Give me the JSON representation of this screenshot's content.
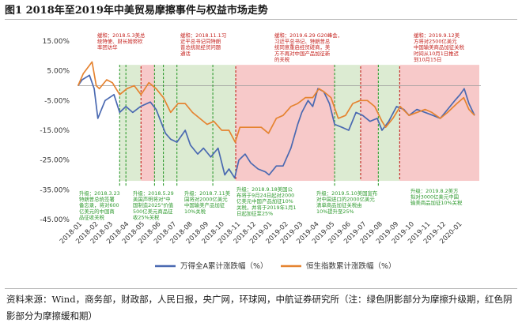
{
  "figure": {
    "title": "图1  2018年至2019年中美贸易摩擦事件与权益市场走势",
    "source": "资料来源：Wind，商务部，财政部，人民日报，央广网，环球网，中航证券研究所（注：绿色阴影部分为摩擦升级期，红色阴影部分为摩擦缓和期）"
  },
  "colors": {
    "wind_line": "#4a69b1",
    "hsi_line": "#e58330",
    "escalation_shade": "#dcebd2",
    "easing_shade": "#f7c9c9",
    "escalation_text": "#2e9a2e",
    "easing_text": "#c4201c"
  },
  "chart_data": {
    "type": "line",
    "ylim": [
      -45,
      15
    ],
    "yticks": [
      15,
      5,
      -5,
      -15,
      -25,
      -35,
      -45
    ],
    "ytick_labels": [
      "15.00%",
      "5.00%",
      "-5.00%",
      "-15.00%",
      "-25.00%",
      "-35.00%",
      "-45.00%"
    ],
    "x_range": [
      "2018-01-01",
      "2020-02-15"
    ],
    "xtick_labels": [
      "2018-01",
      "2018-02",
      "2018-03",
      "2018-04",
      "2018-05",
      "2018-06",
      "2018-07",
      "2018-08",
      "2018-09",
      "2018-10",
      "2018-11",
      "2018-12",
      "2019-01",
      "2019-02",
      "2019-03",
      "2019-04",
      "2019-05",
      "2019-06",
      "2019-07",
      "2019-08",
      "2019-09",
      "2019-10",
      "2019-11",
      "2019-12",
      "2020-01"
    ],
    "series": [
      {
        "name": "万得全A累计涨跌幅（%）",
        "color": "#4a69b1",
        "points": [
          [
            "2018-01-02",
            0
          ],
          [
            "2018-01-10",
            2
          ],
          [
            "2018-01-24",
            3.5
          ],
          [
            "2018-02-02",
            -1
          ],
          [
            "2018-02-09",
            -11
          ],
          [
            "2018-02-23",
            -5
          ],
          [
            "2018-03-12",
            -3
          ],
          [
            "2018-03-23",
            -9
          ],
          [
            "2018-04-04",
            -7
          ],
          [
            "2018-04-17",
            -9
          ],
          [
            "2018-05-02",
            -7
          ],
          [
            "2018-05-21",
            -5.5
          ],
          [
            "2018-06-01",
            -8
          ],
          [
            "2018-06-19",
            -16
          ],
          [
            "2018-06-29",
            -18
          ],
          [
            "2018-07-11",
            -19
          ],
          [
            "2018-07-27",
            -15
          ],
          [
            "2018-08-06",
            -20
          ],
          [
            "2018-08-20",
            -23
          ],
          [
            "2018-08-31",
            -21
          ],
          [
            "2018-09-14",
            -24
          ],
          [
            "2018-09-28",
            -21
          ],
          [
            "2018-10-11",
            -30
          ],
          [
            "2018-10-19",
            -28
          ],
          [
            "2018-10-30",
            -31
          ],
          [
            "2018-11-07",
            -25
          ],
          [
            "2018-11-19",
            -23
          ],
          [
            "2018-11-30",
            -26
          ],
          [
            "2018-12-14",
            -28
          ],
          [
            "2018-12-28",
            -29
          ],
          [
            "2019-01-04",
            -30
          ],
          [
            "2019-01-18",
            -27
          ],
          [
            "2019-01-31",
            -27
          ],
          [
            "2019-02-15",
            -21
          ],
          [
            "2019-02-28",
            -13
          ],
          [
            "2019-03-08",
            -9
          ],
          [
            "2019-03-20",
            -5
          ],
          [
            "2019-03-29",
            -7
          ],
          [
            "2019-04-08",
            -1
          ],
          [
            "2019-04-19",
            -2
          ],
          [
            "2019-04-30",
            -6
          ],
          [
            "2019-05-10",
            -13
          ],
          [
            "2019-05-24",
            -14
          ],
          [
            "2019-06-06",
            -15
          ],
          [
            "2019-06-20",
            -9
          ],
          [
            "2019-07-03",
            -10
          ],
          [
            "2019-07-17",
            -12
          ],
          [
            "2019-07-31",
            -11
          ],
          [
            "2019-08-09",
            -15
          ],
          [
            "2019-08-22",
            -12
          ],
          [
            "2019-09-06",
            -7
          ],
          [
            "2019-09-20",
            -8
          ],
          [
            "2019-09-30",
            -10
          ],
          [
            "2019-10-15",
            -8
          ],
          [
            "2019-10-31",
            -9
          ],
          [
            "2019-11-15",
            -10
          ],
          [
            "2019-11-29",
            -11
          ],
          [
            "2019-12-13",
            -8
          ],
          [
            "2019-12-27",
            -5
          ],
          [
            "2020-01-06",
            -3
          ],
          [
            "2020-01-14",
            -1
          ],
          [
            "2020-01-23",
            -6
          ],
          [
            "2020-02-03",
            -10
          ]
        ]
      },
      {
        "name": "恒生指数累计涨跌幅（%）",
        "color": "#e58330",
        "points": [
          [
            "2018-01-02",
            0
          ],
          [
            "2018-01-12",
            4
          ],
          [
            "2018-01-29",
            8
          ],
          [
            "2018-02-06",
            0
          ],
          [
            "2018-02-12",
            -1
          ],
          [
            "2018-02-26",
            2
          ],
          [
            "2018-03-09",
            1
          ],
          [
            "2018-03-23",
            -3
          ],
          [
            "2018-04-06",
            -1
          ],
          [
            "2018-04-20",
            0
          ],
          [
            "2018-05-03",
            -3
          ],
          [
            "2018-05-18",
            1
          ],
          [
            "2018-06-01",
            -1
          ],
          [
            "2018-06-15",
            -4
          ],
          [
            "2018-06-29",
            -9
          ],
          [
            "2018-07-13",
            -6
          ],
          [
            "2018-07-27",
            -6
          ],
          [
            "2018-08-10",
            -9
          ],
          [
            "2018-08-24",
            -11
          ],
          [
            "2018-09-07",
            -13
          ],
          [
            "2018-09-20",
            -12
          ],
          [
            "2018-10-05",
            -15
          ],
          [
            "2018-10-19",
            -15
          ],
          [
            "2018-10-31",
            -19
          ],
          [
            "2018-11-09",
            -14
          ],
          [
            "2018-11-23",
            -14
          ],
          [
            "2018-12-07",
            -14
          ],
          [
            "2018-12-20",
            -14
          ],
          [
            "2019-01-03",
            -16
          ],
          [
            "2019-01-18",
            -11
          ],
          [
            "2019-01-31",
            -10
          ],
          [
            "2019-02-15",
            -7
          ],
          [
            "2019-02-28",
            -6
          ],
          [
            "2019-03-15",
            -4
          ],
          [
            "2019-03-29",
            -4
          ],
          [
            "2019-04-10",
            -1
          ],
          [
            "2019-04-19",
            -2
          ],
          [
            "2019-05-03",
            -4
          ],
          [
            "2019-05-17",
            -11
          ],
          [
            "2019-05-31",
            -10
          ],
          [
            "2019-06-14",
            -6
          ],
          [
            "2019-06-28",
            -5
          ],
          [
            "2019-07-12",
            -5
          ],
          [
            "2019-07-26",
            -7
          ],
          [
            "2019-08-09",
            -12
          ],
          [
            "2019-08-16",
            -14
          ],
          [
            "2019-08-30",
            -11
          ],
          [
            "2019-09-13",
            -7
          ],
          [
            "2019-09-30",
            -10
          ],
          [
            "2019-10-15",
            -9
          ],
          [
            "2019-10-31",
            -8
          ],
          [
            "2019-11-13",
            -9
          ],
          [
            "2019-11-29",
            -11
          ],
          [
            "2019-12-13",
            -9
          ],
          [
            "2019-12-31",
            -6
          ],
          [
            "2020-01-13",
            -4
          ],
          [
            "2020-01-23",
            -8
          ],
          [
            "2020-02-03",
            -10
          ]
        ]
      }
    ],
    "shaded_periods": [
      {
        "type": "escalation",
        "start": "2018-03-23",
        "end": "2018-05-03"
      },
      {
        "type": "easing",
        "start": "2018-05-03",
        "end": "2018-05-29"
      },
      {
        "type": "escalation",
        "start": "2018-05-29",
        "end": "2018-11-01"
      },
      {
        "type": "easing",
        "start": "2018-11-01",
        "end": "2019-05-10"
      },
      {
        "type": "escalation",
        "start": "2019-05-10",
        "end": "2019-06-29"
      },
      {
        "type": "easing",
        "start": "2019-06-29",
        "end": "2019-08-02"
      },
      {
        "type": "escalation",
        "start": "2019-08-02",
        "end": "2019-09-12"
      },
      {
        "type": "easing",
        "start": "2019-09-12",
        "end": "2020-02-15"
      }
    ],
    "event_lines": [
      {
        "date": "2018-03-23",
        "type": "escalation"
      },
      {
        "date": "2018-04-04",
        "type": "escalation"
      },
      {
        "date": "2018-05-03",
        "type": "easing"
      },
      {
        "date": "2018-05-29",
        "type": "escalation"
      },
      {
        "date": "2018-06-15",
        "type": "escalation"
      },
      {
        "date": "2018-07-11",
        "type": "escalation"
      },
      {
        "date": "2018-09-18",
        "type": "escalation"
      },
      {
        "date": "2018-11-01",
        "type": "easing"
      },
      {
        "date": "2019-05-10",
        "type": "escalation"
      },
      {
        "date": "2019-06-29",
        "type": "easing"
      },
      {
        "date": "2019-08-02",
        "type": "escalation"
      },
      {
        "date": "2019-09-12",
        "type": "easing"
      }
    ],
    "annotations_top": [
      {
        "type": "easing",
        "lines": [
          "缓和：2018.5.3美总",
          "统特使、财长姆努钦",
          "率团访华"
        ]
      },
      {
        "type": "easing",
        "lines": [
          "缓和：2018.11.1习",
          "近平总书记同特朗",
          "普总统就经贸问题",
          "通话"
        ]
      },
      {
        "type": "easing",
        "lines": [
          "缓和：2019.6.29 G20峰会，",
          "习近平总书记、特朗普总",
          "统同意重启经贸磋商，美",
          "方不再对中国产品加征新",
          "的关税"
        ]
      },
      {
        "type": "easing",
        "lines": [
          "缓和：2019.9.12美",
          "方将对2500亿美元",
          "中国输美商品加征关税",
          "时间从10月1日推迟",
          "到10月15日"
        ]
      }
    ],
    "annotations_bottom": [
      {
        "type": "escalation",
        "lines": [
          "升级：2018.3.23",
          "特朗普总统签署",
          "备忘录，将对600",
          "亿美元的中国商",
          "品征收关税"
        ]
      },
      {
        "type": "escalation",
        "lines": [
          "升级：2018.5.29",
          "美国声明将对\"中",
          "国制造2025\"价值",
          "500亿美元商品征",
          "收25%关税"
        ]
      },
      {
        "type": "escalation",
        "lines": [
          "升级：2018.7.11美",
          "国将对2000亿美元",
          "中国输美产品加征",
          "10%关税"
        ]
      },
      {
        "type": "escalation",
        "lines": [
          "升级：2018.9.18美国公",
          "布将于9月24日起对2000",
          "亿美元中国产品加征10%",
          "关税，并将于2019年1月1",
          "日起加征至25%"
        ]
      },
      {
        "type": "escalation",
        "lines": [
          "升级：2019.5.10美国宣布",
          "对中国进口的2000亿美元",
          "清单商品加征关税由",
          "10%提升至25%"
        ]
      },
      {
        "type": "escalation",
        "lines": [
          "升级：2019.8.2美方",
          "拟对3000亿美元中国",
          "输美商品加征10%关税"
        ]
      }
    ]
  }
}
